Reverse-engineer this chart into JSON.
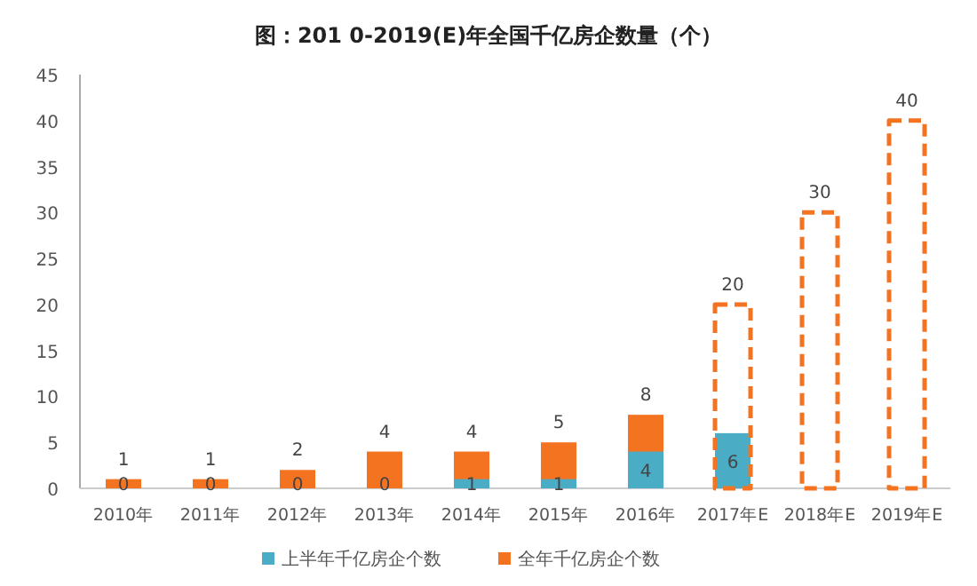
{
  "chart_data": {
    "type": "bar",
    "title": "图：201 0-2019(E)年全国千亿房企数量（个）",
    "categories": [
      "2010年",
      "2011年",
      "2012年",
      "2013年",
      "2014年",
      "2015年",
      "2016年",
      "2017年E",
      "2018年E",
      "2019年E"
    ],
    "series": [
      {
        "name": "上半年千亿房企个数",
        "color": "#4bacc6",
        "values": [
          0,
          0,
          0,
          0,
          1,
          1,
          4,
          6,
          null,
          null
        ]
      },
      {
        "name": "全年千亿房企个数",
        "color": "#f47321",
        "values": [
          1,
          1,
          2,
          4,
          4,
          5,
          8,
          null,
          null,
          null
        ]
      },
      {
        "color": "#f47321",
        "line_style": "dashed",
        "values": [
          null,
          null,
          null,
          null,
          null,
          null,
          null,
          20,
          30,
          40
        ]
      }
    ],
    "ylim": [
      0,
      45
    ],
    "yticks": [
      0,
      5,
      10,
      15,
      20,
      25,
      30,
      35,
      40,
      45
    ],
    "data_labels": true,
    "legend": "bottom",
    "grid": false
  }
}
